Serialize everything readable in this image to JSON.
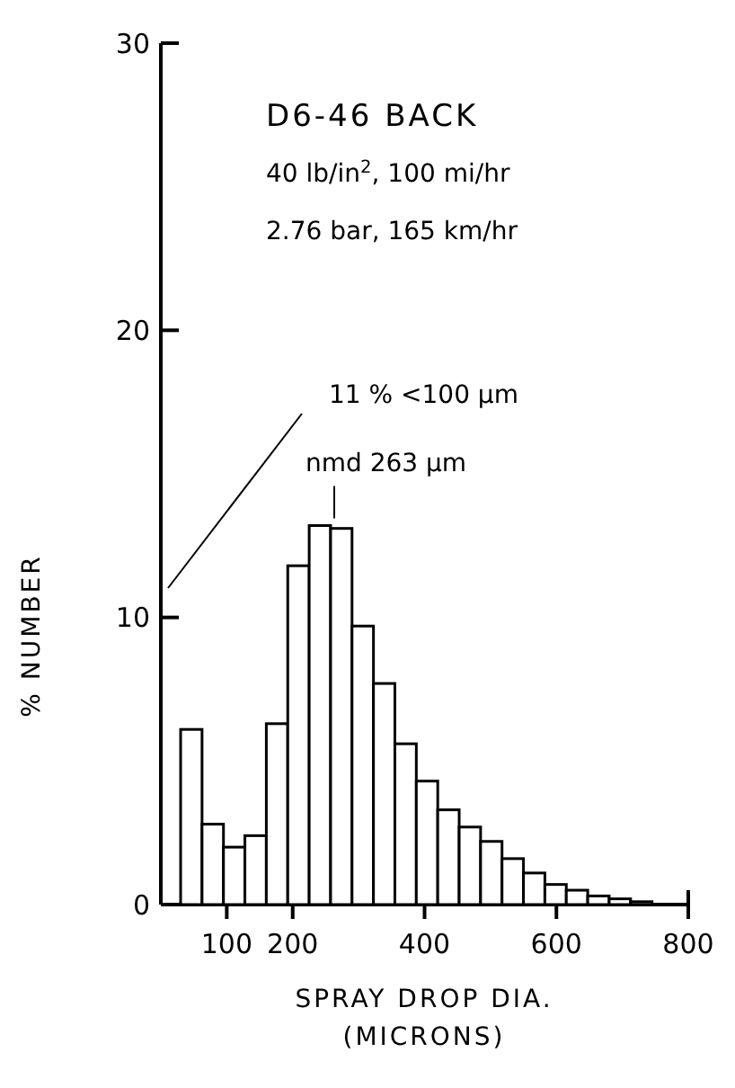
{
  "chart_data": {
    "type": "histogram",
    "title": "D6-46 BACK",
    "subtitle": "40 lb/in$^{2}$, 100 mi/hr",
    "annotations": [
      "2.76 bar, 165 km/hr",
      "11 % <100 µm",
      {
        "text": "nmd 263 µm",
        "x": 263,
        "y": 13.2
      }
    ],
    "xlabel": "SPRAY DROP DIA.\n(MICRONS)",
    "ylabel": "% NUMBER",
    "bins": [
      30,
      62.5,
      95,
      127.5,
      160,
      192.5,
      225,
      257.5,
      290,
      322.5,
      355,
      387.5,
      420,
      452.5,
      485,
      517.5,
      550,
      582.5,
      615,
      647.5,
      680,
      712.5,
      745
    ],
    "values": [
      6.1,
      2.8,
      2,
      2.4,
      6.3,
      11.8,
      13.2,
      13.1,
      9.7,
      7.7,
      5.6,
      4.3,
      3.3,
      2.7,
      2.2,
      1.6,
      1.1,
      0.7,
      0.5,
      0.3,
      0.2,
      0.1
    ],
    "color": "#000000",
    "xlim": [
      0,
      800
    ],
    "ylim": [
      0,
      30
    ],
    "xticks": [
      100,
      200,
      400,
      600,
      800
    ],
    "yticks": [
      0,
      10,
      20,
      30
    ],
    "grid": false
  }
}
